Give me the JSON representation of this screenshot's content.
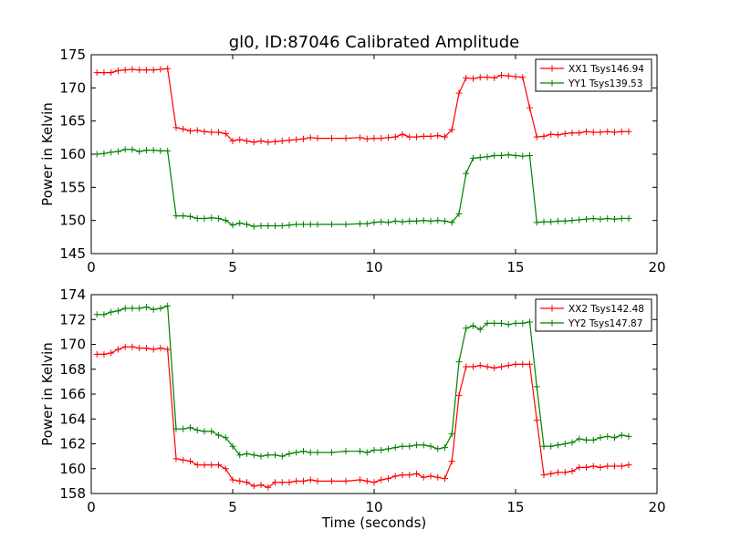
{
  "figure": {
    "title": "gl0, ID:87046 Calibrated Amplitude"
  },
  "chart_data": [
    {
      "type": "line",
      "ylabel": "Power in Kelvin",
      "xlabel": "",
      "xlim": [
        0,
        20
      ],
      "ylim": [
        145,
        175
      ],
      "xticks": [
        "0",
        "5",
        "10",
        "15",
        "20"
      ],
      "yticks": [
        "145",
        "150",
        "155",
        "160",
        "165",
        "170",
        "175"
      ],
      "xtick_values": [
        0,
        5,
        10,
        15,
        20
      ],
      "ytick_values": [
        145,
        150,
        155,
        160,
        165,
        170,
        175
      ],
      "grid": false,
      "legend": "top-right",
      "series": [
        {
          "name": "XX1 Tsys146.94",
          "color": "#ff0000",
          "x": [
            0.2,
            0.45,
            0.7,
            0.95,
            1.2,
            1.45,
            1.7,
            1.95,
            2.2,
            2.45,
            2.7,
            3.0,
            3.25,
            3.5,
            3.75,
            4.0,
            4.25,
            4.5,
            4.75,
            5.0,
            5.25,
            5.5,
            5.75,
            6.0,
            6.25,
            6.5,
            6.75,
            7.0,
            7.25,
            7.5,
            7.75,
            8.0,
            8.5,
            9.0,
            9.5,
            9.75,
            10.0,
            10.25,
            10.5,
            10.75,
            11.0,
            11.25,
            11.5,
            11.75,
            12.0,
            12.25,
            12.5,
            12.75,
            13.0,
            13.25,
            13.5,
            13.75,
            14.0,
            14.25,
            14.5,
            14.75,
            15.0,
            15.25,
            15.5,
            15.75,
            16.0,
            16.25,
            16.5,
            16.75,
            17.0,
            17.25,
            17.5,
            17.75,
            18.0,
            18.25,
            18.5,
            18.75,
            19.0
          ],
          "y": [
            172.3,
            172.3,
            172.3,
            172.6,
            172.7,
            172.8,
            172.7,
            172.7,
            172.7,
            172.8,
            172.9,
            164.0,
            163.8,
            163.5,
            163.6,
            163.4,
            163.3,
            163.3,
            163.1,
            162.0,
            162.2,
            162.0,
            161.8,
            162.0,
            161.8,
            161.9,
            162.0,
            162.1,
            162.2,
            162.3,
            162.5,
            162.4,
            162.4,
            162.4,
            162.5,
            162.3,
            162.4,
            162.4,
            162.5,
            162.6,
            163.0,
            162.6,
            162.6,
            162.7,
            162.7,
            162.8,
            162.6,
            163.7,
            169.2,
            171.5,
            171.4,
            171.6,
            171.6,
            171.5,
            171.9,
            171.8,
            171.7,
            171.6,
            167.0,
            162.6,
            162.7,
            163.0,
            162.9,
            163.1,
            163.2,
            163.2,
            163.4,
            163.3,
            163.3,
            163.4,
            163.3,
            163.4,
            163.4
          ]
        },
        {
          "name": "YY1 Tsys139.53",
          "color": "#008000",
          "x": [
            0.2,
            0.45,
            0.7,
            0.95,
            1.2,
            1.45,
            1.7,
            1.95,
            2.2,
            2.45,
            2.7,
            3.0,
            3.25,
            3.5,
            3.75,
            4.0,
            4.25,
            4.5,
            4.75,
            5.0,
            5.25,
            5.5,
            5.75,
            6.0,
            6.25,
            6.5,
            6.75,
            7.0,
            7.25,
            7.5,
            7.75,
            8.0,
            8.5,
            9.0,
            9.5,
            9.75,
            10.0,
            10.25,
            10.5,
            10.75,
            11.0,
            11.25,
            11.5,
            11.75,
            12.0,
            12.25,
            12.5,
            12.75,
            13.0,
            13.25,
            13.5,
            13.75,
            14.0,
            14.25,
            14.5,
            14.75,
            15.0,
            15.25,
            15.5,
            15.75,
            16.0,
            16.25,
            16.5,
            16.75,
            17.0,
            17.25,
            17.5,
            17.75,
            18.0,
            18.25,
            18.5,
            18.75,
            19.0
          ],
          "y": [
            160.0,
            160.1,
            160.3,
            160.4,
            160.7,
            160.7,
            160.4,
            160.6,
            160.6,
            160.5,
            160.5,
            150.7,
            150.7,
            150.6,
            150.3,
            150.3,
            150.4,
            150.3,
            150.0,
            149.3,
            149.6,
            149.4,
            149.1,
            149.2,
            149.2,
            149.2,
            149.2,
            149.3,
            149.4,
            149.4,
            149.4,
            149.4,
            149.4,
            149.4,
            149.5,
            149.5,
            149.7,
            149.8,
            149.7,
            149.9,
            149.8,
            149.9,
            149.9,
            150.0,
            149.9,
            150.0,
            149.9,
            149.7,
            151.0,
            157.1,
            159.4,
            159.5,
            159.6,
            159.8,
            159.8,
            159.9,
            159.8,
            159.7,
            159.8,
            149.7,
            149.8,
            149.8,
            149.9,
            149.9,
            150.0,
            150.1,
            150.2,
            150.3,
            150.2,
            150.3,
            150.2,
            150.3,
            150.3
          ]
        }
      ]
    },
    {
      "type": "line",
      "ylabel": "Power in Kelvin",
      "xlabel": "Time (seconds)",
      "xlim": [
        0,
        20
      ],
      "ylim": [
        158,
        174
      ],
      "xticks": [
        "0",
        "5",
        "10",
        "15",
        "20"
      ],
      "yticks": [
        "158",
        "160",
        "162",
        "164",
        "166",
        "168",
        "170",
        "172",
        "174"
      ],
      "xtick_values": [
        0,
        5,
        10,
        15,
        20
      ],
      "ytick_values": [
        158,
        160,
        162,
        164,
        166,
        168,
        170,
        172,
        174
      ],
      "grid": false,
      "legend": "top-right",
      "series": [
        {
          "name": "XX2 Tsys142.48",
          "color": "#ff0000",
          "x": [
            0.2,
            0.45,
            0.7,
            0.95,
            1.2,
            1.45,
            1.7,
            1.95,
            2.2,
            2.45,
            2.7,
            3.0,
            3.25,
            3.5,
            3.75,
            4.0,
            4.25,
            4.5,
            4.75,
            5.0,
            5.25,
            5.5,
            5.75,
            6.0,
            6.25,
            6.5,
            6.75,
            7.0,
            7.25,
            7.5,
            7.75,
            8.0,
            8.5,
            9.0,
            9.5,
            9.75,
            10.0,
            10.25,
            10.5,
            10.75,
            11.0,
            11.25,
            11.5,
            11.75,
            12.0,
            12.25,
            12.5,
            12.75,
            13.0,
            13.25,
            13.5,
            13.75,
            14.0,
            14.25,
            14.5,
            14.75,
            15.0,
            15.25,
            15.5,
            15.75,
            16.0,
            16.25,
            16.5,
            16.75,
            17.0,
            17.25,
            17.5,
            17.75,
            18.0,
            18.25,
            18.5,
            18.75,
            19.0
          ],
          "y": [
            169.2,
            169.2,
            169.3,
            169.6,
            169.8,
            169.8,
            169.7,
            169.7,
            169.6,
            169.7,
            169.6,
            160.8,
            160.7,
            160.6,
            160.3,
            160.3,
            160.3,
            160.3,
            160.0,
            159.1,
            159.0,
            158.9,
            158.6,
            158.7,
            158.5,
            158.9,
            158.9,
            158.9,
            159.0,
            159.0,
            159.1,
            159.0,
            159.0,
            159.0,
            159.1,
            159.0,
            158.9,
            159.1,
            159.2,
            159.4,
            159.5,
            159.5,
            159.6,
            159.3,
            159.4,
            159.3,
            159.2,
            160.6,
            165.9,
            168.2,
            168.2,
            168.3,
            168.2,
            168.1,
            168.2,
            168.3,
            168.4,
            168.4,
            168.4,
            163.9,
            159.5,
            159.6,
            159.7,
            159.7,
            159.8,
            160.1,
            160.1,
            160.2,
            160.1,
            160.2,
            160.2,
            160.2,
            160.3
          ]
        },
        {
          "name": "YY2 Tsys147.87",
          "color": "#008000",
          "x": [
            0.2,
            0.45,
            0.7,
            0.95,
            1.2,
            1.45,
            1.7,
            1.95,
            2.2,
            2.45,
            2.7,
            3.0,
            3.25,
            3.5,
            3.75,
            4.0,
            4.25,
            4.5,
            4.75,
            5.0,
            5.25,
            5.5,
            5.75,
            6.0,
            6.25,
            6.5,
            6.75,
            7.0,
            7.25,
            7.5,
            7.75,
            8.0,
            8.5,
            9.0,
            9.5,
            9.75,
            10.0,
            10.25,
            10.5,
            10.75,
            11.0,
            11.25,
            11.5,
            11.75,
            12.0,
            12.25,
            12.5,
            12.75,
            13.0,
            13.25,
            13.5,
            13.75,
            14.0,
            14.25,
            14.5,
            14.75,
            15.0,
            15.25,
            15.5,
            15.75,
            16.0,
            16.25,
            16.5,
            16.75,
            17.0,
            17.25,
            17.5,
            17.75,
            18.0,
            18.25,
            18.5,
            18.75,
            19.0
          ],
          "y": [
            172.4,
            172.4,
            172.6,
            172.7,
            172.9,
            172.9,
            172.9,
            173.0,
            172.8,
            172.9,
            173.1,
            163.2,
            163.2,
            163.3,
            163.1,
            163.0,
            163.0,
            162.7,
            162.5,
            161.8,
            161.1,
            161.2,
            161.1,
            161.0,
            161.1,
            161.1,
            161.0,
            161.2,
            161.3,
            161.4,
            161.3,
            161.3,
            161.3,
            161.4,
            161.4,
            161.3,
            161.5,
            161.5,
            161.6,
            161.7,
            161.8,
            161.8,
            161.9,
            161.9,
            161.8,
            161.6,
            161.7,
            162.8,
            168.6,
            171.3,
            171.5,
            171.2,
            171.7,
            171.7,
            171.7,
            171.6,
            171.7,
            171.7,
            171.8,
            166.6,
            161.8,
            161.8,
            161.9,
            162.0,
            162.1,
            162.4,
            162.3,
            162.3,
            162.5,
            162.6,
            162.5,
            162.7,
            162.6
          ]
        }
      ]
    }
  ]
}
